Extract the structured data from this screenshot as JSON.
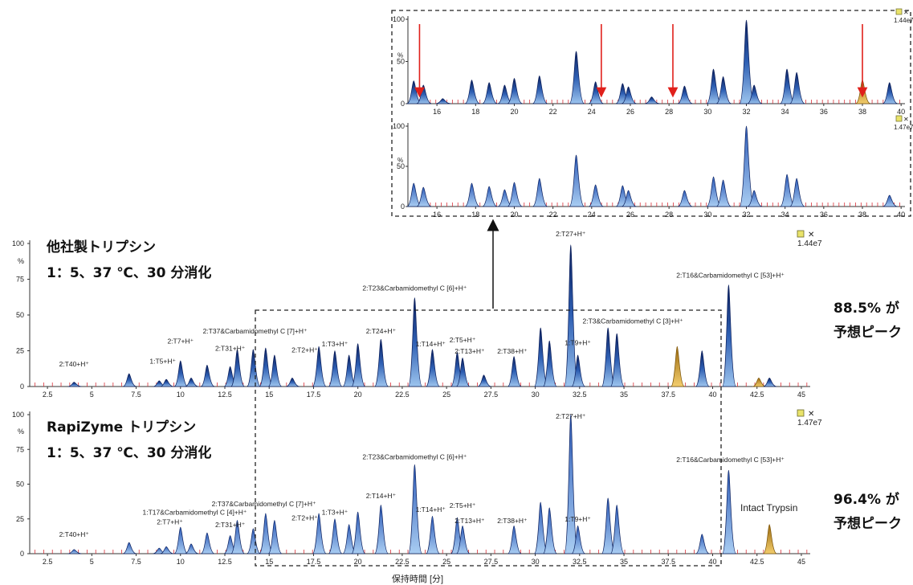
{
  "panels": {
    "top": {
      "title_line1": "他社製トリプシン",
      "title_line2": "1：5、37 ℃、30 分消化",
      "intensity": "1.44e7",
      "y_unit": "%",
      "percent": "88.5% が",
      "percent_line2": "予想ピーク"
    },
    "bottom": {
      "title_line1": "RapiZyme トリプシン",
      "title_line2": "1：5、37 ℃、30 分消化",
      "intensity": "1.47e7",
      "y_unit": "%",
      "percent": "96.4% が",
      "percent_line2": "予想ピーク",
      "extra_label": "Intact Trypsin"
    }
  },
  "xlabel": "保持時間 [分]",
  "chart_data": [
    {
      "type": "area",
      "name": "top-chromatogram",
      "xlim": [
        1.5,
        45.5
      ],
      "ylim": [
        0,
        100
      ],
      "x_ticks": [
        "2.5",
        "5",
        "7.5",
        "10",
        "12.5",
        "15",
        "17.5",
        "20",
        "22.5",
        "25",
        "27.5",
        "30",
        "32.5",
        "35",
        "37.5",
        "40",
        "42.5",
        "45"
      ],
      "y_ticks": [
        "0",
        "25",
        "50",
        "75",
        "100"
      ],
      "peaks": [
        {
          "x": 4.0,
          "y": 3,
          "color": "blue"
        },
        {
          "x": 7.1,
          "y": 9,
          "color": "blue"
        },
        {
          "x": 8.8,
          "y": 4,
          "color": "blue"
        },
        {
          "x": 9.2,
          "y": 5,
          "color": "blue"
        },
        {
          "x": 10.0,
          "y": 18,
          "color": "blue"
        },
        {
          "x": 10.6,
          "y": 6,
          "color": "blue"
        },
        {
          "x": 11.5,
          "y": 15,
          "color": "blue"
        },
        {
          "x": 12.8,
          "y": 14,
          "color": "blue"
        },
        {
          "x": 13.2,
          "y": 26,
          "color": "blue"
        },
        {
          "x": 14.1,
          "y": 26,
          "color": "blue"
        },
        {
          "x": 14.8,
          "y": 27,
          "color": "blue"
        },
        {
          "x": 15.3,
          "y": 22,
          "color": "blue"
        },
        {
          "x": 16.3,
          "y": 6,
          "color": "blue"
        },
        {
          "x": 17.8,
          "y": 28,
          "color": "blue"
        },
        {
          "x": 18.7,
          "y": 25,
          "color": "blue"
        },
        {
          "x": 19.5,
          "y": 22,
          "color": "blue"
        },
        {
          "x": 20.0,
          "y": 30,
          "color": "blue"
        },
        {
          "x": 21.3,
          "y": 33,
          "color": "blue"
        },
        {
          "x": 23.2,
          "y": 62,
          "color": "blue"
        },
        {
          "x": 24.2,
          "y": 26,
          "color": "blue"
        },
        {
          "x": 25.6,
          "y": 24,
          "color": "blue"
        },
        {
          "x": 25.9,
          "y": 20,
          "color": "blue"
        },
        {
          "x": 27.1,
          "y": 8,
          "color": "blue"
        },
        {
          "x": 28.8,
          "y": 21,
          "color": "blue"
        },
        {
          "x": 30.3,
          "y": 41,
          "color": "blue"
        },
        {
          "x": 30.8,
          "y": 32,
          "color": "blue"
        },
        {
          "x": 32.0,
          "y": 99,
          "color": "blue"
        },
        {
          "x": 32.4,
          "y": 22,
          "color": "blue"
        },
        {
          "x": 34.1,
          "y": 41,
          "color": "blue"
        },
        {
          "x": 34.6,
          "y": 37,
          "color": "blue"
        },
        {
          "x": 38.0,
          "y": 28,
          "color": "orange"
        },
        {
          "x": 39.4,
          "y": 25,
          "color": "blue"
        },
        {
          "x": 40.9,
          "y": 71,
          "color": "blue"
        },
        {
          "x": 42.6,
          "y": 6,
          "color": "orange"
        },
        {
          "x": 43.2,
          "y": 6,
          "color": "blue"
        }
      ],
      "annotations": [
        {
          "text": "2:T40+H⁺",
          "x": 4.0,
          "y": 14
        },
        {
          "text": "1:T5+H⁺",
          "x": 9.0,
          "y": 16
        },
        {
          "text": "2:T7+H⁺",
          "x": 10.0,
          "y": 30
        },
        {
          "text": "2:T31+H⁺",
          "x": 12.8,
          "y": 25
        },
        {
          "text": "2:T37&Carbamidomethyl C [7]+H⁺",
          "x": 14.2,
          "y": 37
        },
        {
          "text": "2:T2+H⁺",
          "x": 17.0,
          "y": 24
        },
        {
          "text": "1:T3+H⁺",
          "x": 18.7,
          "y": 28
        },
        {
          "text": "2:T24+H⁺",
          "x": 21.3,
          "y": 37
        },
        {
          "text": "2:T23&Carbamidomethyl C [6]+H⁺",
          "x": 23.2,
          "y": 67
        },
        {
          "text": "1:T14+H⁺",
          "x": 24.1,
          "y": 28
        },
        {
          "text": "2:T5+H⁺",
          "x": 25.9,
          "y": 31
        },
        {
          "text": "2:T13+H⁺",
          "x": 26.3,
          "y": 23
        },
        {
          "text": "2:T38+H⁺",
          "x": 28.7,
          "y": 23
        },
        {
          "text": "2:T27+H⁺",
          "x": 32.0,
          "y": 105
        },
        {
          "text": "1:T9+H⁺",
          "x": 32.4,
          "y": 29
        },
        {
          "text": "2:T3&Carbamidomethyl C [3]+H⁺",
          "x": 35.5,
          "y": 44
        },
        {
          "text": "2:T16&Carbamidomethyl C [53]+H⁺",
          "x": 41.0,
          "y": 76
        }
      ]
    },
    {
      "type": "area",
      "name": "bottom-chromatogram",
      "xlim": [
        1.5,
        45.5
      ],
      "ylim": [
        0,
        100
      ],
      "x_ticks": [
        "2.5",
        "5",
        "7.5",
        "10",
        "12.5",
        "15",
        "17.5",
        "20",
        "22.5",
        "25",
        "27.5",
        "30",
        "32.5",
        "35",
        "37.5",
        "40",
        "42.5",
        "45"
      ],
      "y_ticks": [
        "0",
        "25",
        "50",
        "75",
        "100"
      ],
      "xlabel": "保持時間 [分]",
      "peaks": [
        {
          "x": 4.0,
          "y": 3,
          "color": "blue"
        },
        {
          "x": 7.1,
          "y": 8,
          "color": "blue"
        },
        {
          "x": 8.8,
          "y": 4,
          "color": "blue"
        },
        {
          "x": 9.2,
          "y": 5,
          "color": "blue"
        },
        {
          "x": 10.0,
          "y": 19,
          "color": "blue"
        },
        {
          "x": 10.6,
          "y": 7,
          "color": "blue"
        },
        {
          "x": 11.5,
          "y": 15,
          "color": "blue"
        },
        {
          "x": 12.8,
          "y": 13,
          "color": "blue"
        },
        {
          "x": 13.2,
          "y": 24,
          "color": "blue"
        },
        {
          "x": 14.1,
          "y": 18,
          "color": "blue"
        },
        {
          "x": 14.8,
          "y": 29,
          "color": "blue"
        },
        {
          "x": 15.3,
          "y": 24,
          "color": "blue"
        },
        {
          "x": 17.8,
          "y": 29,
          "color": "blue"
        },
        {
          "x": 18.7,
          "y": 25,
          "color": "blue"
        },
        {
          "x": 19.5,
          "y": 21,
          "color": "blue"
        },
        {
          "x": 20.0,
          "y": 30,
          "color": "blue"
        },
        {
          "x": 21.3,
          "y": 35,
          "color": "blue"
        },
        {
          "x": 23.2,
          "y": 64,
          "color": "blue"
        },
        {
          "x": 24.2,
          "y": 27,
          "color": "blue"
        },
        {
          "x": 25.6,
          "y": 26,
          "color": "blue"
        },
        {
          "x": 25.9,
          "y": 20,
          "color": "blue"
        },
        {
          "x": 28.8,
          "y": 20,
          "color": "blue"
        },
        {
          "x": 30.3,
          "y": 37,
          "color": "blue"
        },
        {
          "x": 30.8,
          "y": 33,
          "color": "blue"
        },
        {
          "x": 32.0,
          "y": 100,
          "color": "blue"
        },
        {
          "x": 32.4,
          "y": 20,
          "color": "blue"
        },
        {
          "x": 34.1,
          "y": 40,
          "color": "blue"
        },
        {
          "x": 34.6,
          "y": 35,
          "color": "blue"
        },
        {
          "x": 39.4,
          "y": 14,
          "color": "blue"
        },
        {
          "x": 40.9,
          "y": 60,
          "color": "blue"
        },
        {
          "x": 43.2,
          "y": 21,
          "color": "orange"
        }
      ],
      "annotations": [
        {
          "text": "2:T40+H⁺",
          "x": 4.0,
          "y": 12
        },
        {
          "text": "1:T17&Carbamidomethyl C [4]+H⁺",
          "x": 10.8,
          "y": 28
        },
        {
          "text": "2:T7+H⁺",
          "x": 9.4,
          "y": 21
        },
        {
          "text": "2:T31+H⁺",
          "x": 12.8,
          "y": 19
        },
        {
          "text": "2:T37&Carbamidomethyl C [7]+H⁺",
          "x": 14.7,
          "y": 34
        },
        {
          "text": "2:T2+H⁺",
          "x": 17.0,
          "y": 24
        },
        {
          "text": "1:T3+H⁺",
          "x": 18.7,
          "y": 28
        },
        {
          "text": "2:T14+H⁺",
          "x": 21.3,
          "y": 40
        },
        {
          "text": "2:T23&Carbamidomethyl C [6]+H⁺",
          "x": 23.2,
          "y": 68
        },
        {
          "text": "1:T14+H⁺",
          "x": 24.1,
          "y": 30
        },
        {
          "text": "2:T5+H⁺",
          "x": 25.9,
          "y": 33
        },
        {
          "text": "2:T13+H⁺",
          "x": 26.3,
          "y": 22
        },
        {
          "text": "2:T38+H⁺",
          "x": 28.7,
          "y": 22
        },
        {
          "text": "2:T27+H⁺",
          "x": 32.0,
          "y": 97
        },
        {
          "text": "1:T9+H⁺",
          "x": 32.4,
          "y": 23
        },
        {
          "text": "2:T16&Carbamidomethyl C [53]+H⁺",
          "x": 41.0,
          "y": 66
        }
      ]
    },
    {
      "type": "area",
      "name": "inset-top",
      "xlim": [
        14.5,
        40.2
      ],
      "ylim": [
        0,
        100
      ],
      "x_ticks": [
        "16",
        "18",
        "20",
        "22",
        "24",
        "26",
        "28",
        "30",
        "32",
        "34",
        "36",
        "38",
        "40"
      ],
      "y_ticks": [
        "0",
        "50",
        "100"
      ],
      "intensity": "1.44e7",
      "red_arrows_x": [
        15.1,
        24.5,
        28.2,
        38.0
      ]
    },
    {
      "type": "area",
      "name": "inset-bottom",
      "xlim": [
        14.5,
        40.2
      ],
      "ylim": [
        0,
        100
      ],
      "x_ticks": [
        "16",
        "18",
        "20",
        "22",
        "24",
        "26",
        "28",
        "30",
        "32",
        "34",
        "36",
        "38",
        "40"
      ],
      "y_ticks": [
        "0",
        "50",
        "100"
      ],
      "intensity": "1.47e7"
    }
  ]
}
